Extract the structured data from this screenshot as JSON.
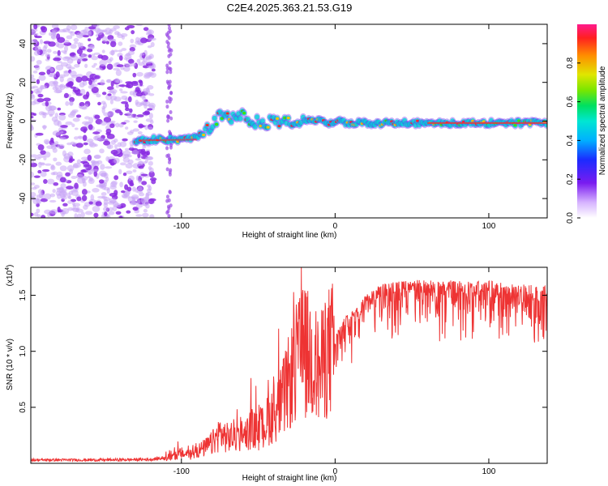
{
  "title": "C2E4.2025.363.21.53.G19",
  "chart_data": [
    {
      "type": "heatmap",
      "xlabel": "Height of straight line (km)",
      "ylabel": "Frequency (Hz)",
      "xlim": [
        -198,
        138
      ],
      "ylim": [
        -50,
        50
      ],
      "xticks": [
        -100,
        0,
        100
      ],
      "yticks": [
        -40,
        -20,
        0,
        20,
        40
      ],
      "colorbar": {
        "label": "Normalized spectral amplitude",
        "range": [
          0,
          1
        ],
        "ticks": [
          "0.0",
          "0.2",
          "0.4",
          "0.6",
          "0.8"
        ]
      },
      "trace": {
        "x": [
          -130,
          -120,
          -110,
          -100,
          -92,
          -85,
          -80,
          -75,
          -70,
          -65,
          -60,
          -55,
          -50,
          -45,
          -40,
          -35,
          -30,
          -25,
          -20,
          -15,
          -10,
          -5,
          0,
          10,
          20,
          40,
          60,
          80,
          100,
          120,
          138
        ],
        "freq": [
          -10,
          -9.5,
          -9.5,
          -9.5,
          -9,
          -6,
          -2,
          3,
          2,
          1,
          3,
          -1,
          0,
          -2,
          2,
          -1,
          0,
          -2,
          0,
          0,
          0,
          -1,
          0,
          -1,
          -1,
          -1,
          -1,
          -1,
          -1,
          -1,
          -1
        ]
      }
    },
    {
      "type": "line",
      "xlabel": "Height of straight line (km)",
      "ylabel": "SNR (10 * v/v)",
      "scale_label": "(x10",
      "scale_exp": "4",
      "xlim": [
        -198,
        138
      ],
      "ylim": [
        0,
        17500
      ],
      "xticks": [
        -100,
        0,
        100
      ],
      "yticks": [
        5000,
        10000,
        15000
      ],
      "ytick_labels": [
        "0.5",
        "1.0",
        "1.5"
      ],
      "series": [
        {
          "name": "SNR",
          "color": "#ee3333",
          "x": [
            -198,
            -150,
            -120,
            -110,
            -100,
            -95,
            -90,
            -85,
            -80,
            -75,
            -70,
            -65,
            -60,
            -55,
            -50,
            -45,
            -40,
            -35,
            -30,
            -25,
            -20,
            -15,
            -10,
            -5,
            0,
            5,
            10,
            15,
            20,
            25,
            30,
            40,
            50,
            60,
            70,
            80,
            90,
            100,
            110,
            120,
            130,
            138
          ],
          "y": [
            300,
            300,
            350,
            500,
            1000,
            800,
            1200,
            1500,
            2000,
            3000,
            2500,
            2800,
            2200,
            3500,
            3000,
            4000,
            5000,
            6000,
            8000,
            10000,
            11000,
            10500,
            9000,
            11000,
            11500,
            13000,
            13500,
            14000,
            15000,
            15500,
            16000,
            16200,
            16400,
            16300,
            16400,
            16300,
            16200,
            16300,
            16100,
            16000,
            15900,
            15800
          ]
        }
      ]
    }
  ]
}
